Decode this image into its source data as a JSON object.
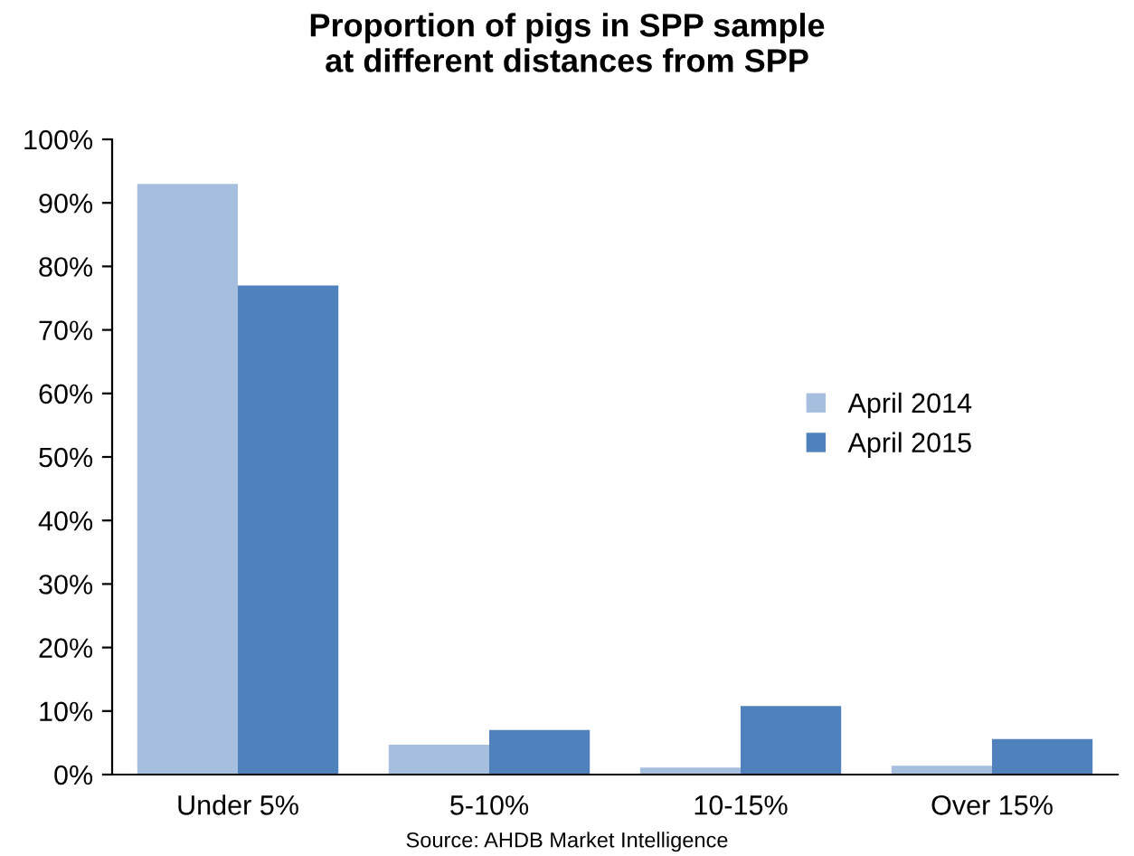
{
  "chart_data": {
    "type": "bar",
    "title": "Proportion of pigs in SPP sample\nat different distances from SPP",
    "categories": [
      "Under 5%",
      "5-10%",
      "10-15%",
      "Over 15%"
    ],
    "series": [
      {
        "name": "April 2014",
        "color": "#a7bfde",
        "values": [
          93,
          4.7,
          1.1,
          1.4
        ]
      },
      {
        "name": "April 2015",
        "color": "#4f81bd",
        "values": [
          77,
          7,
          10.8,
          5.6
        ]
      }
    ],
    "ylim": [
      0,
      100
    ],
    "yticks": [
      {
        "value": 0,
        "label": "0%"
      },
      {
        "value": 10,
        "label": "10%"
      },
      {
        "value": 20,
        "label": "20%"
      },
      {
        "value": 30,
        "label": "30%"
      },
      {
        "value": 40,
        "label": "40%"
      },
      {
        "value": 50,
        "label": "50%"
      },
      {
        "value": 60,
        "label": "60%"
      },
      {
        "value": 70,
        "label": "70%"
      },
      {
        "value": 80,
        "label": "80%"
      },
      {
        "value": 90,
        "label": "90%"
      },
      {
        "value": 100,
        "label": "100%"
      }
    ],
    "grid": false,
    "legend": "right",
    "annotations": [
      "Source: AHDB Market Intelligence"
    ]
  }
}
